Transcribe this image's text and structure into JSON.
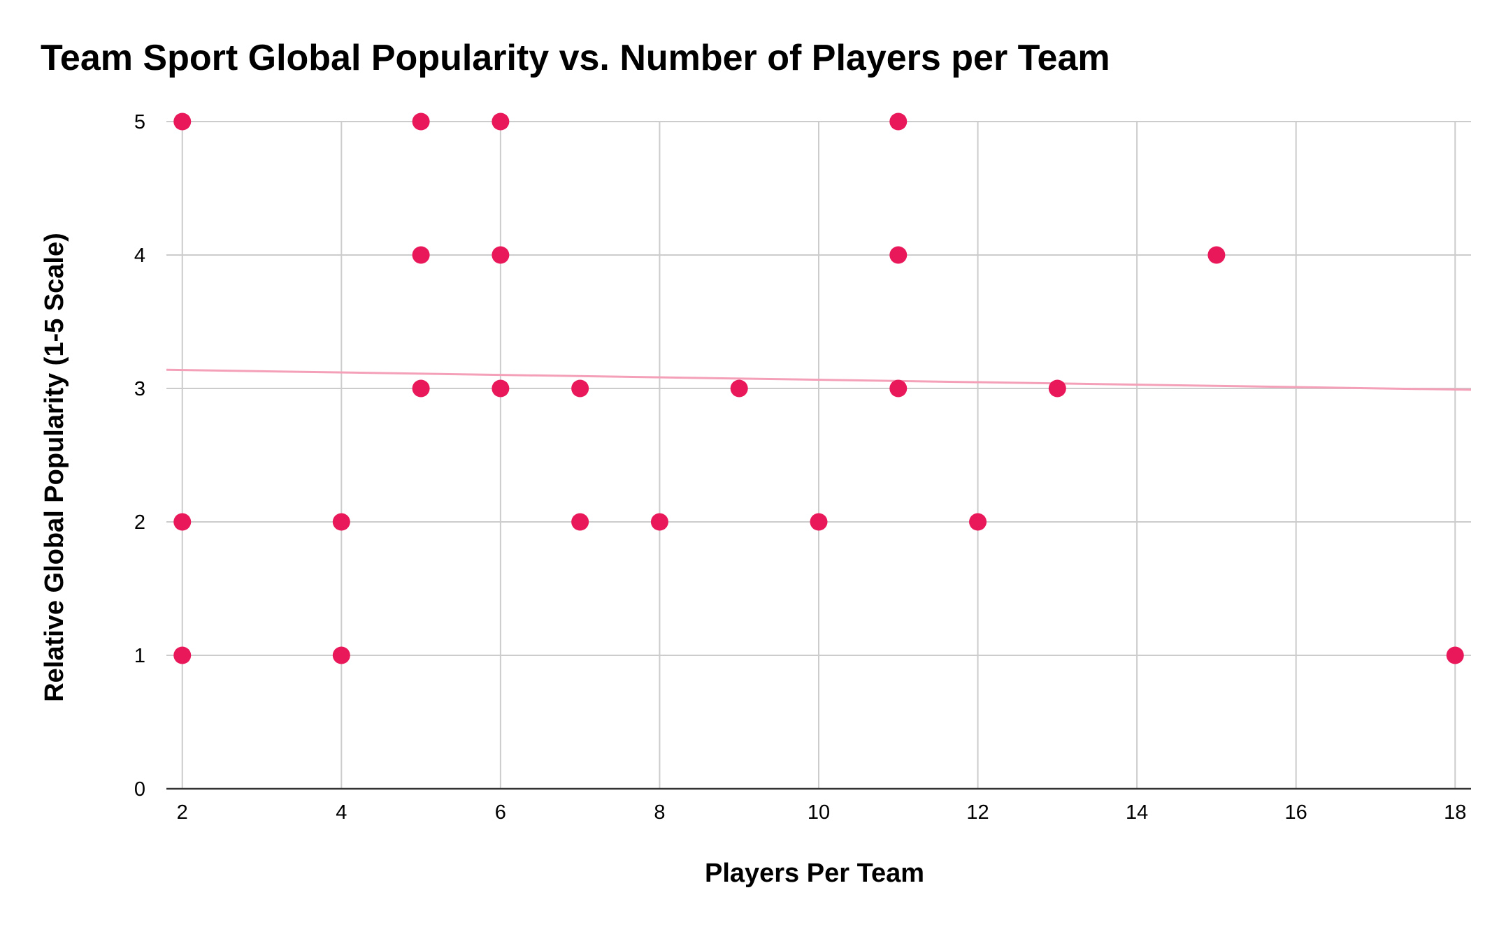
{
  "chart_data": {
    "type": "scatter",
    "title": "Team Sport Global Popularity vs. Number of Players per Team",
    "xlabel": "Players Per Team",
    "ylabel": "Relative Global Popularity (1-5 Scale)",
    "xlim": [
      1.8,
      18.2
    ],
    "ylim": [
      0,
      5
    ],
    "x_ticks": [
      2,
      4,
      6,
      8,
      10,
      12,
      14,
      16,
      18
    ],
    "y_ticks": [
      0,
      1,
      2,
      3,
      4,
      5
    ],
    "x_tick_labels": [
      "2",
      "4",
      "6",
      "8",
      "10",
      "12",
      "14",
      "16",
      "18"
    ],
    "y_tick_labels": [
      "0",
      "1",
      "2",
      "3",
      "4",
      "5"
    ],
    "grid": true,
    "legend": "none",
    "point_color": "#e8185a",
    "trendline_color": "#f4a0b9",
    "trendline": {
      "type": "linear",
      "x": [
        1.8,
        18.2
      ],
      "y": [
        3.14,
        2.99
      ]
    },
    "points": [
      {
        "x": 2,
        "y": 5
      },
      {
        "x": 2,
        "y": 2
      },
      {
        "x": 2,
        "y": 1
      },
      {
        "x": 4,
        "y": 2
      },
      {
        "x": 4,
        "y": 1
      },
      {
        "x": 5,
        "y": 5
      },
      {
        "x": 5,
        "y": 4
      },
      {
        "x": 5,
        "y": 3
      },
      {
        "x": 6,
        "y": 5
      },
      {
        "x": 6,
        "y": 4
      },
      {
        "x": 6,
        "y": 3
      },
      {
        "x": 7,
        "y": 3
      },
      {
        "x": 7,
        "y": 2
      },
      {
        "x": 8,
        "y": 2
      },
      {
        "x": 9,
        "y": 3
      },
      {
        "x": 10,
        "y": 2
      },
      {
        "x": 11,
        "y": 5
      },
      {
        "x": 11,
        "y": 4
      },
      {
        "x": 11,
        "y": 3
      },
      {
        "x": 12,
        "y": 2
      },
      {
        "x": 13,
        "y": 3
      },
      {
        "x": 15,
        "y": 4
      },
      {
        "x": 18,
        "y": 1
      }
    ]
  }
}
